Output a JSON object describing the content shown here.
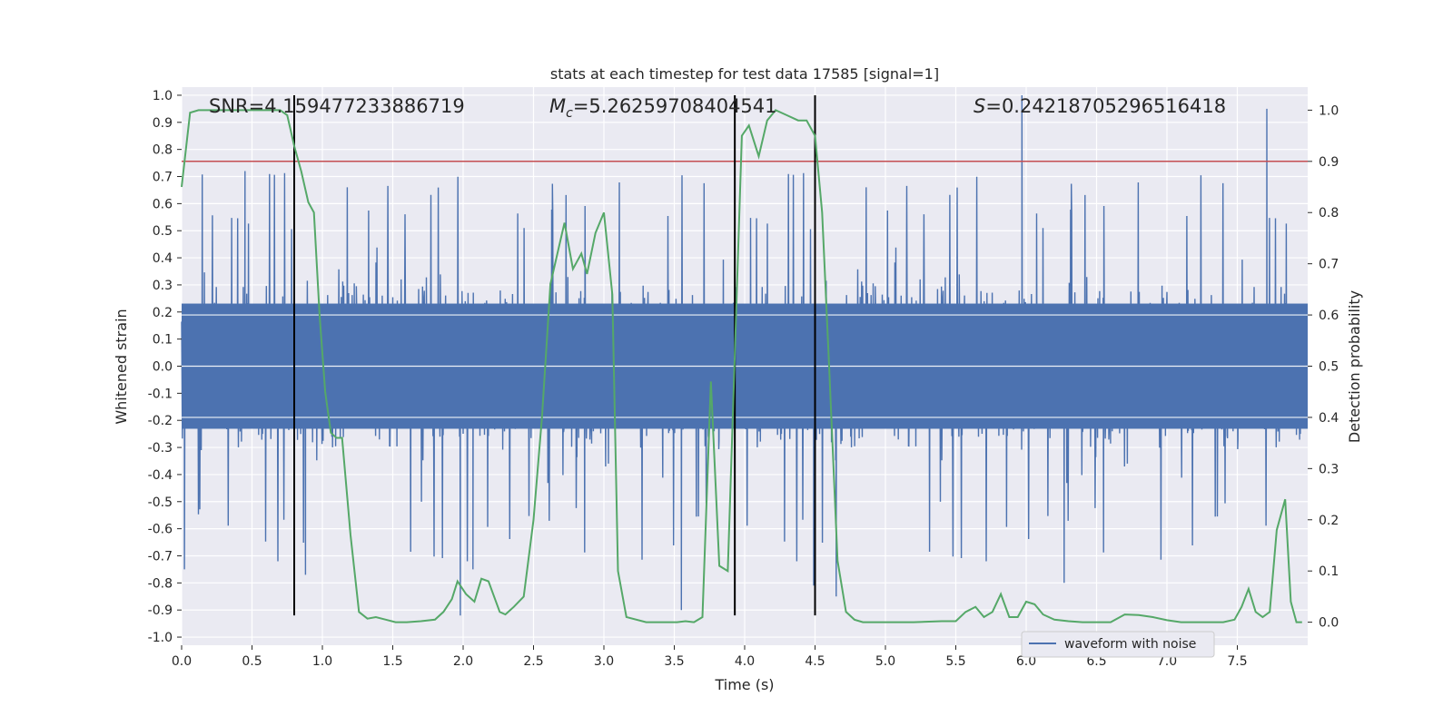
{
  "chart_data": {
    "type": "line",
    "title": "stats at each timestep for test data 17585 [signal=1]",
    "xlabel": "Time (s)",
    "ylabel": "Whitened strain",
    "y2label": "Detection probability",
    "xlim": [
      0.0,
      8.0
    ],
    "ylim": [
      -1.03,
      1.03
    ],
    "y2lim": [
      -0.045,
      1.045
    ],
    "x_ticks": [
      "0.0",
      "0.5",
      "1.0",
      "1.5",
      "2.0",
      "2.5",
      "3.0",
      "3.5",
      "4.0",
      "4.5",
      "5.0",
      "5.5",
      "6.0",
      "6.5",
      "7.0",
      "7.5"
    ],
    "y_ticks": [
      "-1.0",
      "-0.9",
      "-0.8",
      "-0.7",
      "-0.6",
      "-0.5",
      "-0.4",
      "-0.3",
      "-0.2",
      "-0.1",
      "0.0",
      "0.1",
      "0.2",
      "0.3",
      "0.4",
      "0.5",
      "0.6",
      "0.7",
      "0.8",
      "0.9",
      "1.0"
    ],
    "y2_ticks": [
      "0.0",
      "0.1",
      "0.2",
      "0.3",
      "0.4",
      "0.5",
      "0.6",
      "0.7",
      "0.8",
      "0.9",
      "1.0"
    ],
    "annotations": {
      "snr": "SNR=4.159477233886719",
      "mc_symbol": "M",
      "mc_sub": "c",
      "mc_value": "=5.26259708404541",
      "s_symbol": "S",
      "s_value": "=0.24218705296516418"
    },
    "threshold": 0.9,
    "vlines": [
      0.8,
      3.93,
      4.5
    ],
    "vline_ymin": -0.92,
    "vline_ymax": 1.0,
    "legend": {
      "label": "waveform with noise",
      "loc": "lower-right"
    },
    "colors": {
      "waveform": "#4c72b0",
      "probability": "#55a868",
      "threshold": "#c44e52",
      "vline": "#000000",
      "background": "#eaeaf2",
      "grid": "#ffffff"
    },
    "waveform_envelope": {
      "typical_amplitude": 0.42,
      "peak_amplitude": 1.0,
      "sample_rate_display": 2048,
      "seed": 17585
    },
    "waveform_peaks": [
      {
        "t": 5.97,
        "v": 1.0
      },
      {
        "t": 7.71,
        "v": 0.95
      },
      {
        "t": 0.45,
        "v": 0.72
      },
      {
        "t": 0.02,
        "v": -0.75
      },
      {
        "t": 1.98,
        "v": -0.92
      },
      {
        "t": 3.55,
        "v": -0.9
      },
      {
        "t": 4.49,
        "v": -0.81
      },
      {
        "t": 6.27,
        "v": -0.8
      },
      {
        "t": 0.88,
        "v": -0.77
      },
      {
        "t": 2.07,
        "v": -0.75
      },
      {
        "t": 4.65,
        "v": -0.85
      }
    ],
    "probability": {
      "x": [
        0.0,
        0.06,
        0.12,
        0.2,
        0.3,
        0.4,
        0.5,
        0.6,
        0.7,
        0.75,
        0.8,
        0.85,
        0.9,
        0.94,
        0.98,
        1.02,
        1.06,
        1.1,
        1.14,
        1.2,
        1.26,
        1.32,
        1.38,
        1.45,
        1.52,
        1.6,
        1.7,
        1.8,
        1.86,
        1.92,
        1.96,
        2.02,
        2.08,
        2.13,
        2.18,
        2.26,
        2.3,
        2.36,
        2.43,
        2.5,
        2.56,
        2.62,
        2.67,
        2.72,
        2.78,
        2.84,
        2.88,
        2.94,
        3.0,
        3.06,
        3.1,
        3.16,
        3.3,
        3.42,
        3.52,
        3.58,
        3.64,
        3.7,
        3.76,
        3.82,
        3.88,
        3.93,
        3.98,
        4.03,
        4.1,
        4.16,
        4.22,
        4.3,
        4.38,
        4.44,
        4.5,
        4.55,
        4.6,
        4.66,
        4.72,
        4.78,
        4.84,
        4.9,
        5.0,
        5.2,
        5.4,
        5.5,
        5.57,
        5.64,
        5.7,
        5.76,
        5.82,
        5.88,
        5.94,
        6.0,
        6.06,
        6.12,
        6.2,
        6.3,
        6.4,
        6.5,
        6.6,
        6.7,
        6.8,
        6.9,
        7.0,
        7.1,
        7.2,
        7.3,
        7.4,
        7.48,
        7.53,
        7.58,
        7.63,
        7.68,
        7.73,
        7.78,
        7.84,
        7.88,
        7.92,
        7.96
      ],
      "y": [
        0.85,
        0.995,
        1.0,
        1.0,
        1.0,
        1.0,
        1.0,
        1.0,
        1.0,
        0.99,
        0.93,
        0.88,
        0.82,
        0.8,
        0.6,
        0.45,
        0.37,
        0.36,
        0.36,
        0.17,
        0.02,
        0.007,
        0.01,
        0.005,
        0.0,
        0.0,
        0.002,
        0.005,
        0.02,
        0.045,
        0.08,
        0.055,
        0.04,
        0.085,
        0.08,
        0.02,
        0.015,
        0.03,
        0.05,
        0.2,
        0.4,
        0.66,
        0.72,
        0.78,
        0.69,
        0.72,
        0.68,
        0.76,
        0.8,
        0.64,
        0.1,
        0.01,
        0.0,
        0.0,
        0.0,
        0.002,
        0.0,
        0.01,
        0.47,
        0.11,
        0.1,
        0.52,
        0.95,
        0.97,
        0.91,
        0.98,
        1.0,
        0.99,
        0.98,
        0.98,
        0.95,
        0.8,
        0.5,
        0.12,
        0.02,
        0.005,
        0.0,
        0.0,
        0.0,
        0.0,
        0.002,
        0.002,
        0.02,
        0.03,
        0.01,
        0.02,
        0.055,
        0.01,
        0.01,
        0.04,
        0.035,
        0.015,
        0.005,
        0.002,
        0.0,
        0.0,
        0.0,
        0.015,
        0.014,
        0.01,
        0.004,
        0.0,
        0.0,
        0.0,
        0.0,
        0.005,
        0.03,
        0.065,
        0.02,
        0.01,
        0.02,
        0.18,
        0.24,
        0.04,
        0.0,
        0.0
      ]
    }
  }
}
